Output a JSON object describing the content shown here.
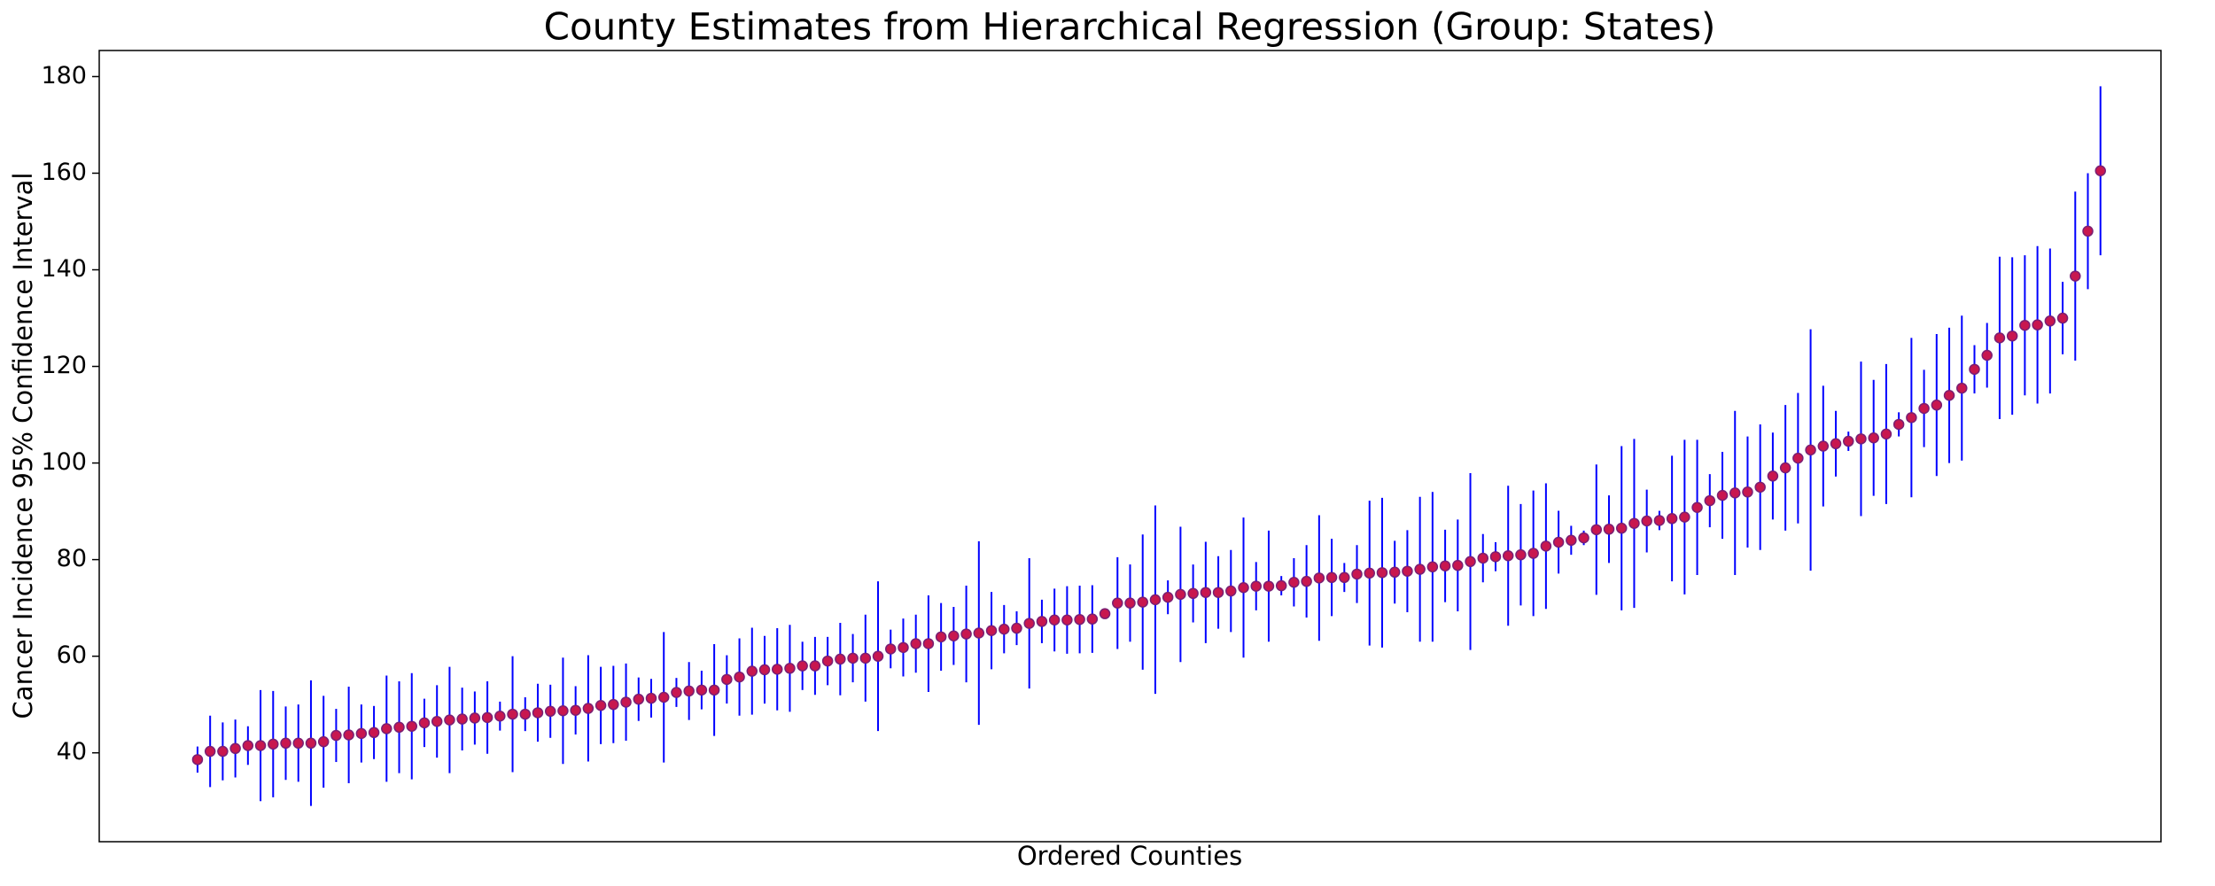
{
  "chart_data": {
    "type": "errorbar",
    "title": "County Estimates from Hierarchical Regression (Group: States)",
    "x_label": "Ordered Counties",
    "y_label": "Cancer Incidence 95% Confidence Interval",
    "ylim": [
      21.6,
      185.4
    ],
    "yticks": [
      40,
      60,
      80,
      100,
      120,
      140,
      160,
      180
    ],
    "grid": false,
    "error_color": "#0000ff",
    "marker_color": "#c8174f",
    "marker_edge": "#7a1f73",
    "values": [
      38.6,
      40.3,
      40.3,
      40.9,
      41.5,
      41.5,
      41.8,
      42,
      42,
      42,
      42.3,
      43.6,
      43.7,
      44,
      44.2,
      45,
      45.3,
      45.5,
      46.2,
      46.5,
      46.8,
      47,
      47.2,
      47.3,
      47.6,
      48,
      48,
      48.3,
      48.6,
      48.7,
      48.8,
      49.2,
      49.8,
      50,
      50.5,
      51.1,
      51.3,
      51.5,
      52.5,
      52.8,
      53,
      53,
      55.2,
      55.7,
      56.9,
      57.2,
      57.3,
      57.5,
      58,
      58,
      59,
      59.4,
      59.6,
      59.6,
      60,
      61.5,
      61.8,
      62.6,
      62.6,
      64,
      64.2,
      64.6,
      64.8,
      65.3,
      65.6,
      65.8,
      66.8,
      67.2,
      67.5,
      67.5,
      67.6,
      67.7,
      68.8,
      71,
      71,
      71.2,
      71.7,
      72.2,
      72.8,
      73,
      73.2,
      73.2,
      73.5,
      74.2,
      74.5,
      74.5,
      74.6,
      75.3,
      75.5,
      76.2,
      76.3,
      76.3,
      77,
      77.2,
      77.3,
      77.4,
      77.6,
      78,
      78.5,
      78.7,
      78.8,
      79.6,
      80.3,
      80.6,
      80.8,
      81,
      81.3,
      82.8,
      83.6,
      84,
      84.5,
      86.2,
      86.3,
      86.5,
      87.5,
      88,
      88.1,
      88.5,
      88.8,
      90.8,
      92.2,
      93.3,
      93.8,
      94,
      95,
      97.3,
      99,
      101,
      102.7,
      103.5,
      104,
      104.5,
      105,
      105.2,
      106,
      108,
      109.4,
      111.3,
      112,
      114,
      115.5,
      119.4,
      122.3,
      125.9,
      126.3,
      128.5,
      128.6,
      129.4,
      130,
      138.7,
      148,
      160.5
    ],
    "errors": [
      2.7,
      7.4,
      6,
      6,
      4,
      11.5,
      11,
      7.6,
      8,
      13,
      9.5,
      5.5,
      10,
      6,
      5.5,
      11,
      9.5,
      11,
      5,
      7.5,
      11,
      6.5,
      5.5,
      7.5,
      3,
      12,
      3.5,
      6,
      5.5,
      11,
      5,
      11,
      8,
      8,
      8,
      4.5,
      4,
      13.5,
      3,
      6,
      4,
      9.5,
      5,
      8,
      9,
      7,
      8.5,
      9,
      5,
      6,
      5,
      7.5,
      5,
      9,
      15.5,
      4,
      6,
      6,
      10,
      7,
      6,
      10,
      19,
      8,
      5,
      3.5,
      13.5,
      4.5,
      6.5,
      7,
      7,
      7,
      1,
      9.5,
      8,
      14,
      19.5,
      3.5,
      14,
      6,
      10.5,
      7.5,
      8.5,
      14.5,
      5,
      11.5,
      2,
      5,
      7.5,
      13,
      8,
      3,
      6,
      15,
      15.5,
      6.5,
      8.5,
      15,
      15.5,
      7.5,
      9.5,
      18.3,
      5,
      3,
      14.5,
      10.5,
      13,
      13,
      6.5,
      3,
      1.5,
      13.5,
      7,
      17,
      17.5,
      6.5,
      2,
      13,
      16,
      14,
      5.5,
      9,
      17,
      11.5,
      13,
      9,
      13,
      13.5,
      25,
      12.5,
      6.8,
      2,
      16,
      12,
      14.5,
      2.5,
      16.5,
      8,
      14.7,
      14,
      15,
      5,
      6.7,
      16.8,
      16.3,
      14.5,
      16.3,
      15,
      7.5,
      17.5,
      12,
      17.5
    ]
  }
}
